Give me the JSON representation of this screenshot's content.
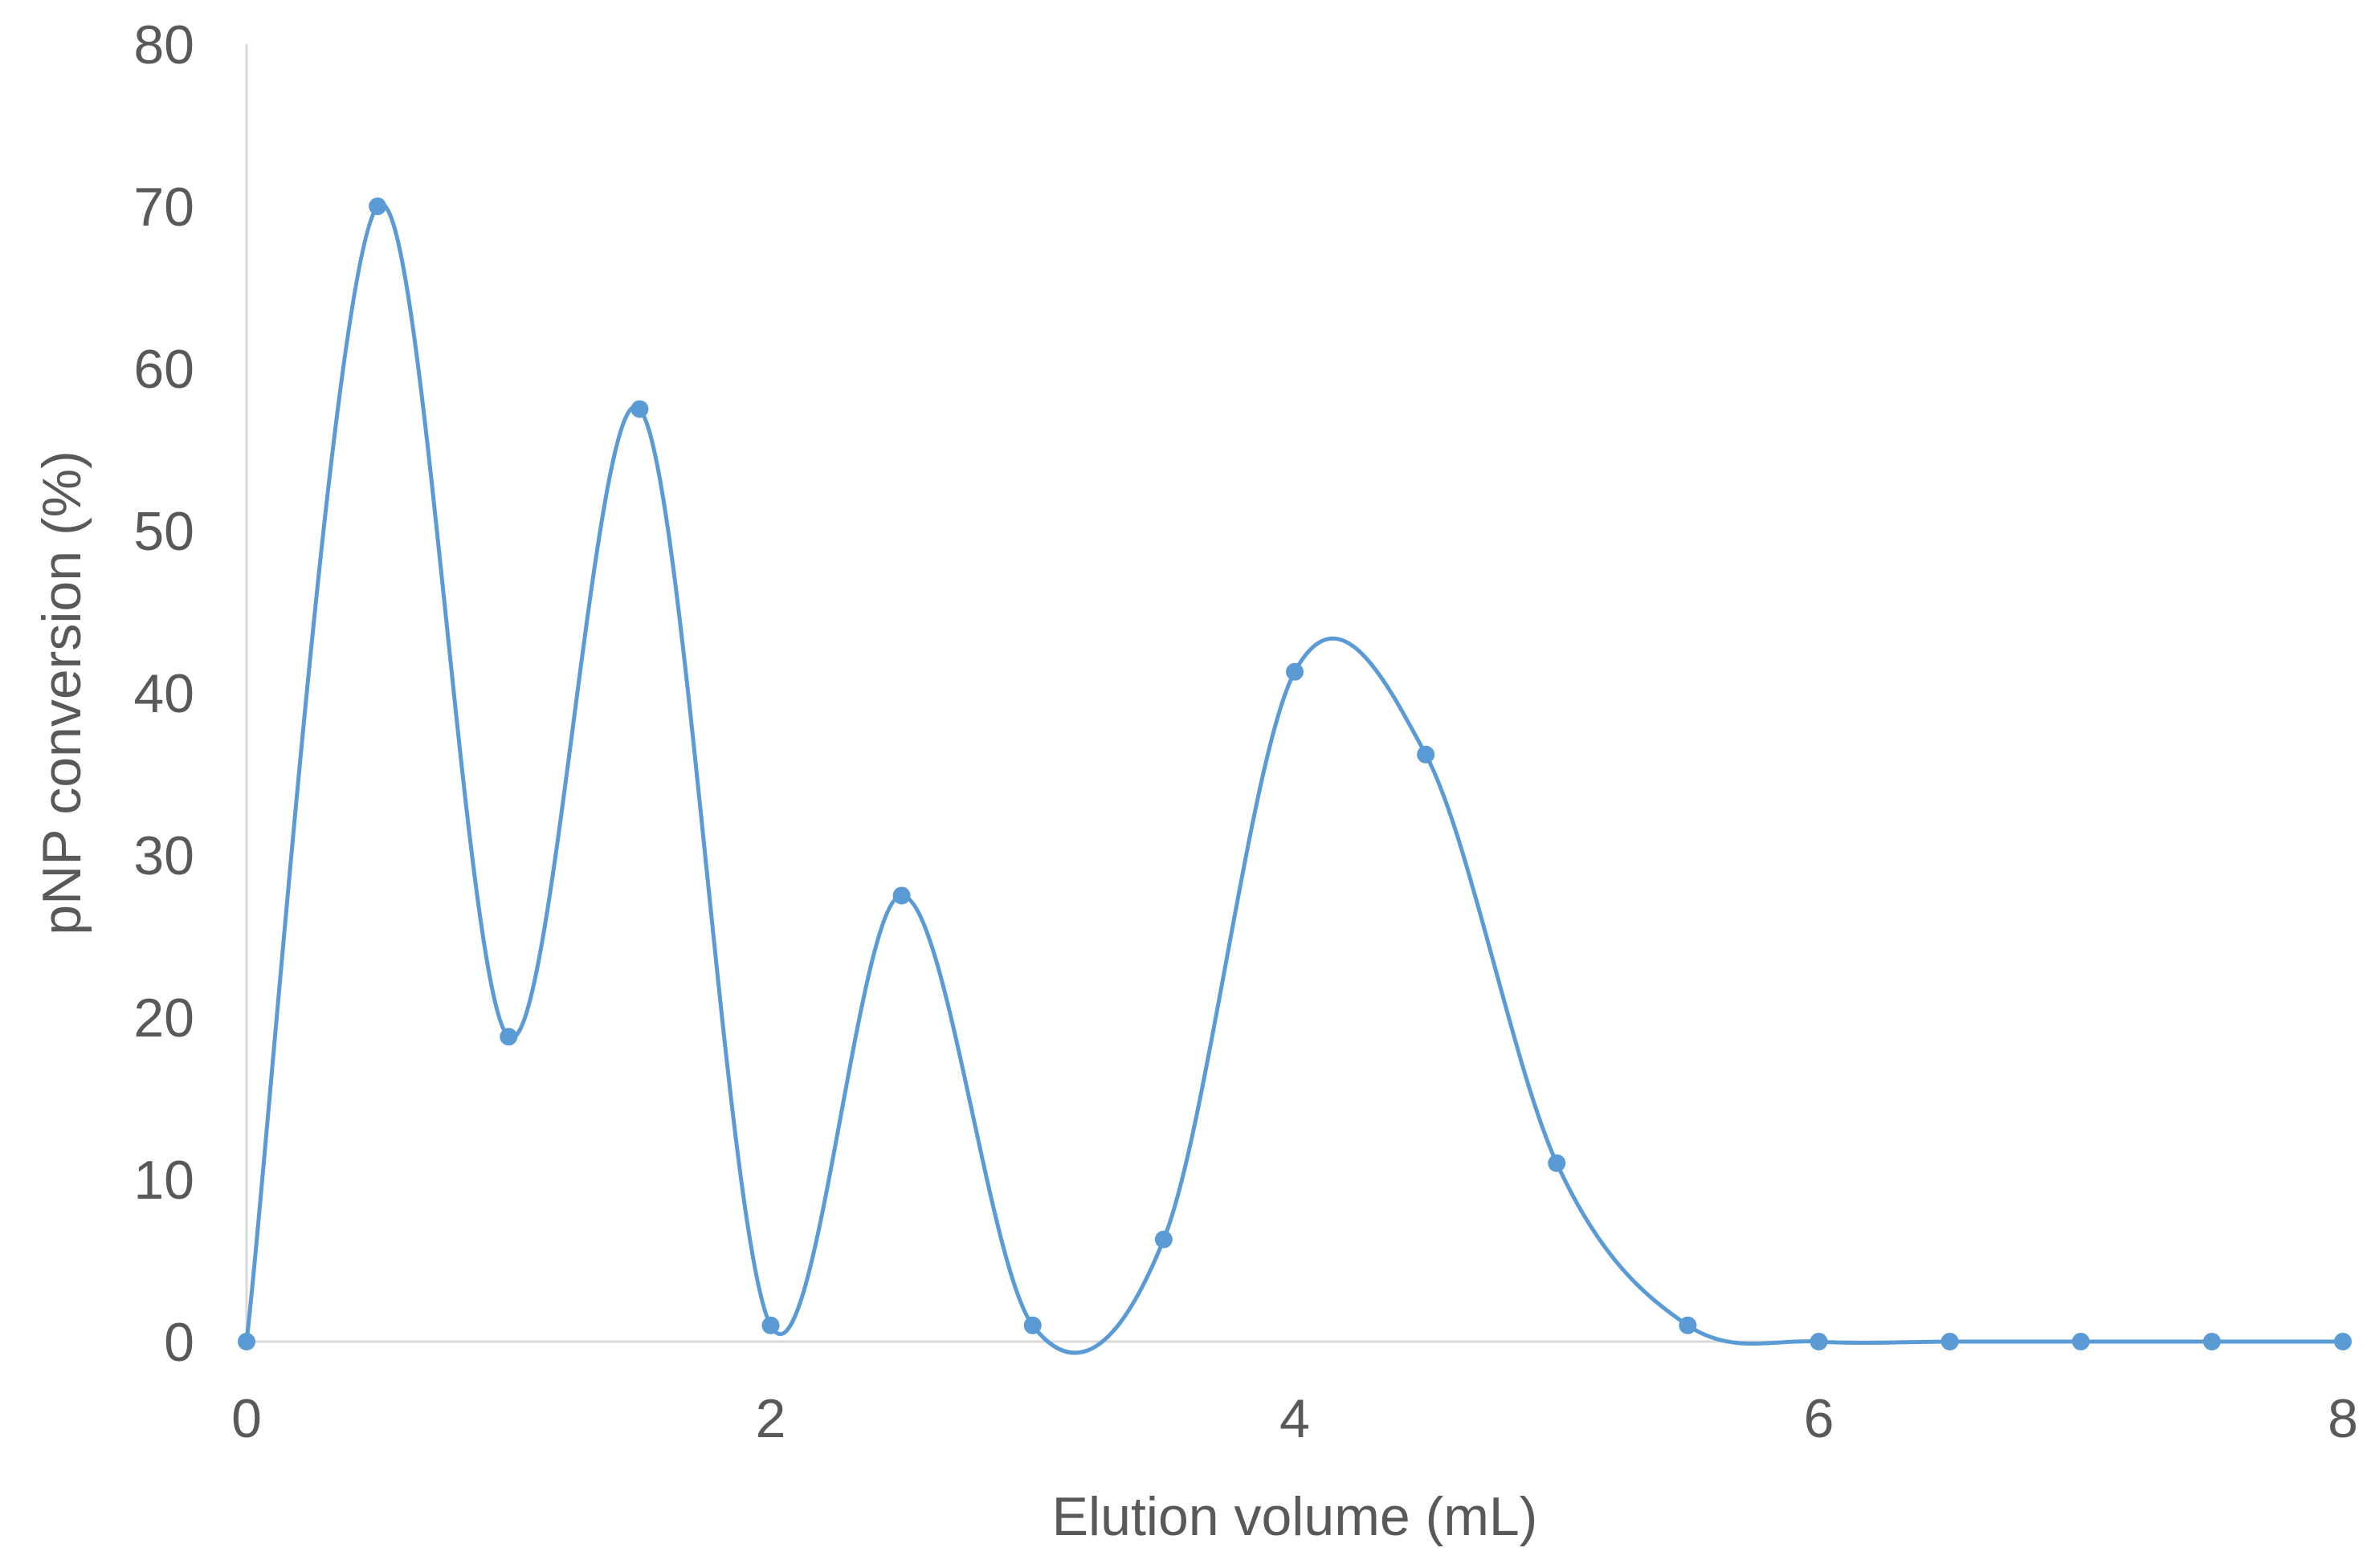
{
  "chart_data": {
    "type": "scatter",
    "title": "",
    "xlabel": "Elution volume (mL)",
    "ylabel": "pNP conversion (%)",
    "xlim": [
      0,
      8
    ],
    "ylim": [
      0,
      80
    ],
    "x_ticks": [
      "0",
      "2",
      "4",
      "6",
      "8"
    ],
    "y_ticks": [
      "0",
      "10",
      "20",
      "30",
      "40",
      "50",
      "60",
      "70",
      "80"
    ],
    "grid": false,
    "legend": "none",
    "marker": true,
    "smoothed_line": true,
    "series": [
      {
        "color": "#5B9BD5",
        "points": [
          {
            "x": 0,
            "y": 0
          },
          {
            "x": 0.5,
            "y": 70
          },
          {
            "x": 1,
            "y": 18.8
          },
          {
            "x": 1.5,
            "y": 57.5
          },
          {
            "x": 2,
            "y": 1
          },
          {
            "x": 2.5,
            "y": 27.5
          },
          {
            "x": 3,
            "y": 1
          },
          {
            "x": 3.5,
            "y": 6.3
          },
          {
            "x": 4,
            "y": 41.3
          },
          {
            "x": 4.5,
            "y": 36.2
          },
          {
            "x": 5,
            "y": 11
          },
          {
            "x": 5.5,
            "y": 1
          },
          {
            "x": 6,
            "y": 0
          },
          {
            "x": 6.5,
            "y": 0
          },
          {
            "x": 7,
            "y": 0
          },
          {
            "x": 7.5,
            "y": 0
          },
          {
            "x": 8,
            "y": 0
          }
        ]
      }
    ]
  }
}
